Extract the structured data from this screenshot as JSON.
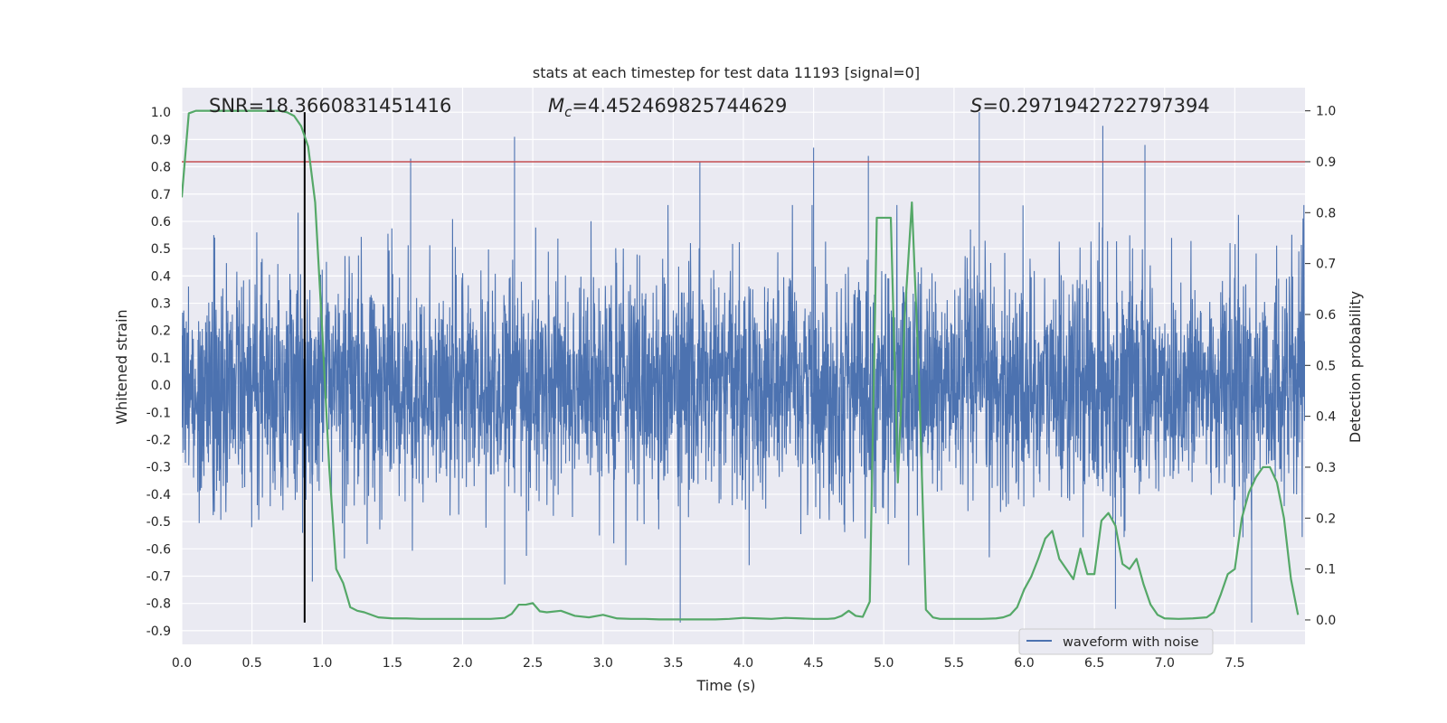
{
  "chart_data": {
    "type": "line",
    "title": "stats at each timestep for test data 11193 [signal=0]",
    "xlabel": "Time (s)",
    "ylabel": "Whitened strain",
    "y2label": "Detection probability",
    "xlim": [
      0.0,
      8.0
    ],
    "ylim": [
      -0.95,
      1.09
    ],
    "y2lim": [
      -0.048,
      1.0455
    ],
    "x_ticks": [
      "0.0",
      "0.5",
      "1.0",
      "1.5",
      "2.0",
      "2.5",
      "3.0",
      "3.5",
      "4.0",
      "4.5",
      "5.0",
      "5.5",
      "6.0",
      "6.5",
      "7.0",
      "7.5"
    ],
    "y_ticks": [
      "1.0",
      "0.9",
      "0.8",
      "0.7",
      "0.6",
      "0.5",
      "0.4",
      "0.3",
      "0.2",
      "0.1",
      "0.0",
      "-0.1",
      "-0.2",
      "-0.3",
      "-0.4",
      "-0.5",
      "-0.6",
      "-0.7",
      "-0.8",
      "-0.9"
    ],
    "y2_ticks": [
      "1.0",
      "0.9",
      "0.8",
      "0.7",
      "0.6",
      "0.5",
      "0.4",
      "0.3",
      "0.2",
      "0.1",
      "0.0"
    ],
    "grid": true,
    "legend": {
      "position": "lower-right",
      "entries": [
        "waveform with noise"
      ]
    },
    "annotations": {
      "snr": "SNR=18.3660831451416",
      "mc_symbol": "M",
      "mc_subscript": "c",
      "mc_value": "=4.452469825744629",
      "s_symbol": "S",
      "s_value": "=0.2971942722797394"
    },
    "threshold": {
      "axis": "right",
      "value": 0.9,
      "color": "#c44e52"
    },
    "marker_line": {
      "x": 0.875,
      "y_from": -0.87,
      "y_to": 1.0,
      "color": "#000000"
    },
    "series": [
      {
        "name": "waveform with noise",
        "axis": "left",
        "color": "#4c72b0",
        "note_envelope": "noise envelope roughly between -0.6 and 0.6 with spikes",
        "spikes": [
          {
            "x": 1.63,
            "y": 0.83
          },
          {
            "x": 2.37,
            "y": 0.91
          },
          {
            "x": 3.55,
            "y": -0.87
          },
          {
            "x": 3.69,
            "y": 0.82
          },
          {
            "x": 4.5,
            "y": 0.87
          },
          {
            "x": 4.89,
            "y": 0.84
          },
          {
            "x": 5.68,
            "y": 1.0
          },
          {
            "x": 6.56,
            "y": 0.95
          },
          {
            "x": 6.86,
            "y": 0.88
          },
          {
            "x": 7.62,
            "y": -0.87
          },
          {
            "x": 2.3,
            "y": -0.73
          },
          {
            "x": 6.65,
            "y": -0.82
          },
          {
            "x": 0.93,
            "y": -0.72
          }
        ]
      },
      {
        "name": "detection probability",
        "axis": "right",
        "color": "#55a868",
        "x": [
          0.0,
          0.05,
          0.1,
          0.2,
          0.3,
          0.4,
          0.5,
          0.6,
          0.7,
          0.75,
          0.8,
          0.85,
          0.9,
          0.95,
          1.0,
          1.05,
          1.1,
          1.15,
          1.2,
          1.25,
          1.3,
          1.4,
          1.5,
          1.6,
          1.7,
          1.8,
          2.0,
          2.2,
          2.3,
          2.35,
          2.4,
          2.45,
          2.5,
          2.55,
          2.6,
          2.7,
          2.8,
          2.9,
          3.0,
          3.1,
          3.2,
          3.3,
          3.4,
          3.5,
          3.6,
          3.7,
          3.8,
          3.9,
          4.0,
          4.1,
          4.2,
          4.3,
          4.4,
          4.5,
          4.6,
          4.65,
          4.7,
          4.75,
          4.8,
          4.85,
          4.9,
          4.95,
          5.0,
          5.05,
          5.1,
          5.15,
          5.2,
          5.25,
          5.3,
          5.35,
          5.4,
          5.5,
          5.6,
          5.7,
          5.8,
          5.85,
          5.9,
          5.95,
          6.0,
          6.05,
          6.1,
          6.15,
          6.2,
          6.25,
          6.3,
          6.35,
          6.4,
          6.45,
          6.5,
          6.55,
          6.6,
          6.65,
          6.7,
          6.75,
          6.8,
          6.85,
          6.9,
          6.95,
          7.0,
          7.1,
          7.2,
          7.3,
          7.35,
          7.4,
          7.45,
          7.5,
          7.55,
          7.6,
          7.65,
          7.7,
          7.75,
          7.8,
          7.85,
          7.9,
          7.95
        ],
        "y": [
          0.83,
          0.995,
          1.0,
          1.0,
          1.0,
          1.0,
          1.0,
          1.0,
          1.0,
          0.997,
          0.99,
          0.97,
          0.93,
          0.82,
          0.57,
          0.3,
          0.1,
          0.072,
          0.025,
          0.018,
          0.015,
          0.005,
          0.003,
          0.003,
          0.002,
          0.002,
          0.002,
          0.002,
          0.004,
          0.012,
          0.03,
          0.03,
          0.033,
          0.017,
          0.015,
          0.018,
          0.008,
          0.005,
          0.01,
          0.003,
          0.002,
          0.002,
          0.001,
          0.001,
          0.001,
          0.001,
          0.001,
          0.002,
          0.004,
          0.003,
          0.002,
          0.004,
          0.003,
          0.002,
          0.002,
          0.003,
          0.008,
          0.018,
          0.008,
          0.006,
          0.036,
          0.79,
          0.79,
          0.79,
          0.27,
          0.6,
          0.82,
          0.48,
          0.02,
          0.005,
          0.002,
          0.002,
          0.002,
          0.002,
          0.003,
          0.005,
          0.01,
          0.025,
          0.06,
          0.085,
          0.12,
          0.16,
          0.175,
          0.12,
          0.1,
          0.08,
          0.14,
          0.09,
          0.09,
          0.195,
          0.21,
          0.185,
          0.11,
          0.1,
          0.12,
          0.07,
          0.03,
          0.01,
          0.003,
          0.002,
          0.003,
          0.005,
          0.015,
          0.05,
          0.09,
          0.1,
          0.2,
          0.25,
          0.28,
          0.3,
          0.3,
          0.27,
          0.2,
          0.08,
          0.01
        ]
      }
    ]
  }
}
